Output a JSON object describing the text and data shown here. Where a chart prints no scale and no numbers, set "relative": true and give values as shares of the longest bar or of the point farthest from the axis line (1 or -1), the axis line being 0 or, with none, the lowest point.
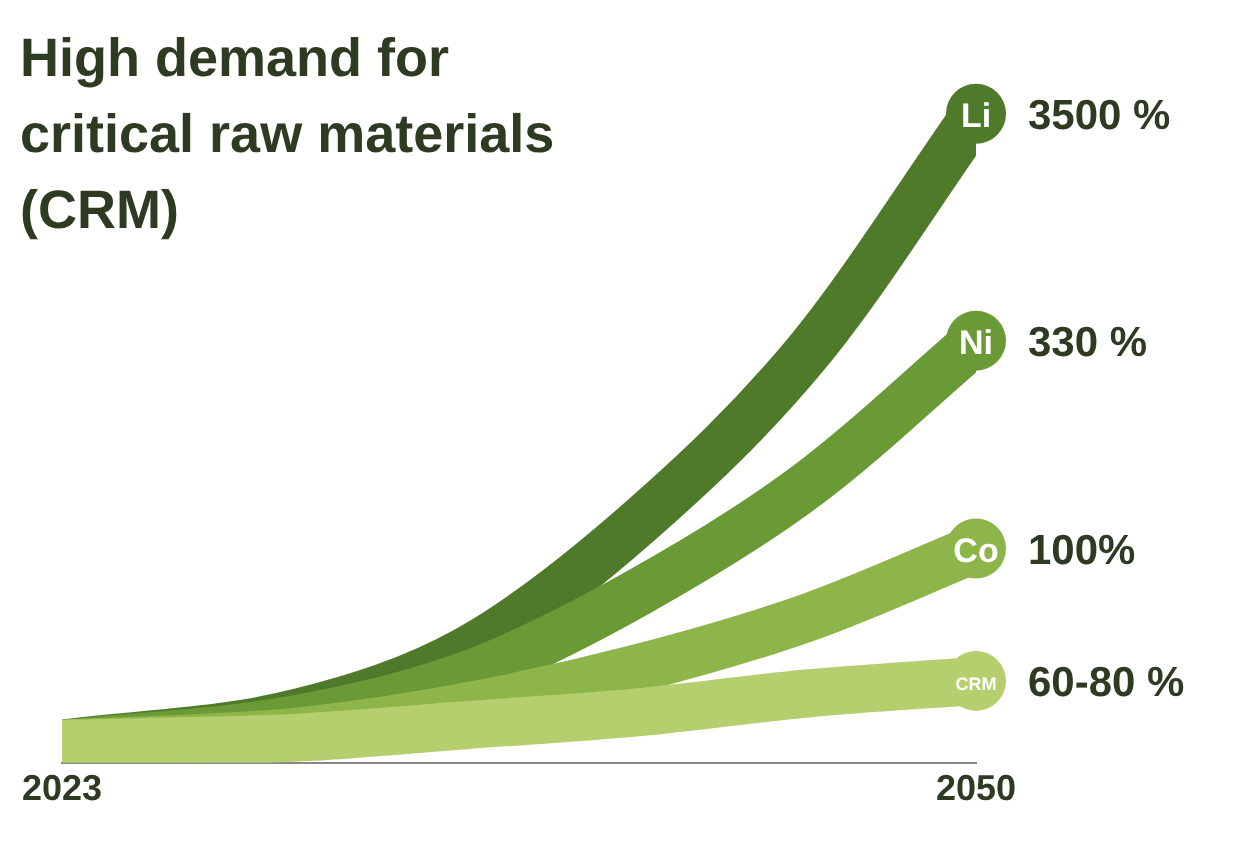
{
  "chart_data": {
    "type": "line",
    "title": "High demand for critical raw materials (CRM)",
    "relative": true,
    "x": [
      2023,
      2030,
      2035,
      2040,
      2045,
      2050
    ],
    "xlim": [
      2023,
      2050
    ],
    "xticks": [
      2023,
      2050
    ],
    "legend": false,
    "grid": false,
    "marker": "none",
    "line_style": "solid",
    "annotations": [
      "3500 %",
      "330 %",
      "100%",
      "60-80 %"
    ],
    "series": [
      {
        "name": "Li",
        "color": "#4f7a2a",
        "values": [
          0,
          0.05,
          0.15,
          0.35,
          0.62,
          1
        ]
      },
      {
        "name": "Ni",
        "color": "#6a9a35",
        "values": [
          0,
          0.04,
          0.11,
          0.24,
          0.41,
          0.64
        ]
      },
      {
        "name": "Co",
        "color": "#8db54a",
        "values": [
          0,
          0.02,
          0.06,
          0.12,
          0.2,
          0.31
        ]
      },
      {
        "name": "CRM",
        "color": "#b5cf6e",
        "values": [
          0,
          0.01,
          0.03,
          0.05,
          0.08,
          0.1
        ]
      }
    ]
  }
}
